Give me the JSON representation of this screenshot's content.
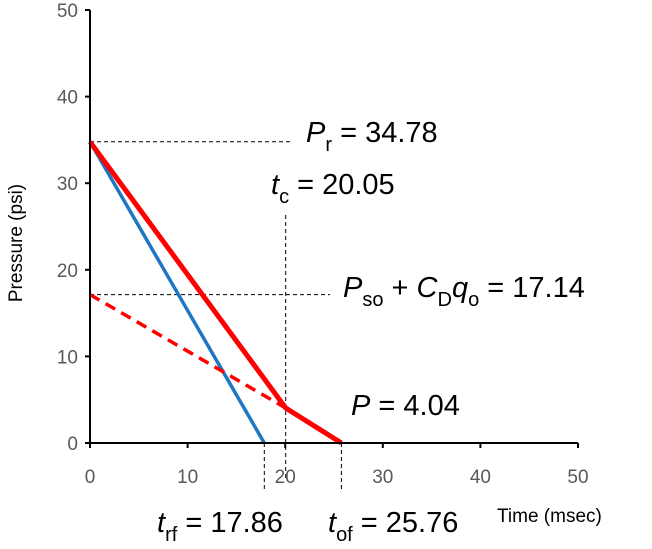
{
  "chart_data": {
    "type": "line",
    "title": "",
    "xlabel": "Time (msec)",
    "ylabel": "Pressure (psi)",
    "xlim": [
      0,
      50
    ],
    "ylim": [
      0,
      50
    ],
    "xticks": [
      "0",
      "10",
      "20",
      "30",
      "40",
      "50"
    ],
    "yticks": [
      "0",
      "10",
      "20",
      "30",
      "40",
      "50"
    ],
    "grid": false,
    "series": [
      {
        "color": "#1f77c4",
        "style": "solid",
        "points": [
          [
            0,
            34.78
          ],
          [
            17.86,
            0
          ]
        ]
      },
      {
        "color": "#ff0000",
        "style": "solid",
        "points": [
          [
            0,
            34.78
          ],
          [
            20.05,
            4.04
          ],
          [
            25.76,
            0
          ]
        ]
      },
      {
        "color": "#ff0000",
        "style": "dashed",
        "points": [
          [
            0,
            17.14
          ],
          [
            20.05,
            4.04
          ]
        ]
      }
    ],
    "reference_lines": [
      {
        "orientation": "horizontal",
        "value": 34.78
      },
      {
        "orientation": "horizontal",
        "value": 17.14
      },
      {
        "orientation": "vertical",
        "value": 20.05
      },
      {
        "orientation": "vertical",
        "value": 17.86
      },
      {
        "orientation": "vertical",
        "value": 25.76
      }
    ],
    "annotations": {
      "pr": {
        "sym": "P",
        "sub": "r",
        "text": " = 34.78"
      },
      "tc": {
        "sym": "t",
        "sub": "c",
        "text": " = 20.05"
      },
      "pso_sym": "P",
      "pso_sub": "so",
      "pso_plus": " + ",
      "cd_sym": "C",
      "cd_sub": "D",
      "q_sym": "q",
      "q_sub": "o",
      "pso_text": " = 17.14",
      "p": {
        "sym": "P",
        "text": " = 4.04"
      },
      "trf": {
        "sym": "t",
        "sub": "rf",
        "text": " = 17.86"
      },
      "tof": {
        "sym": "t",
        "sub": "of",
        "text": " = 25.76"
      }
    }
  }
}
